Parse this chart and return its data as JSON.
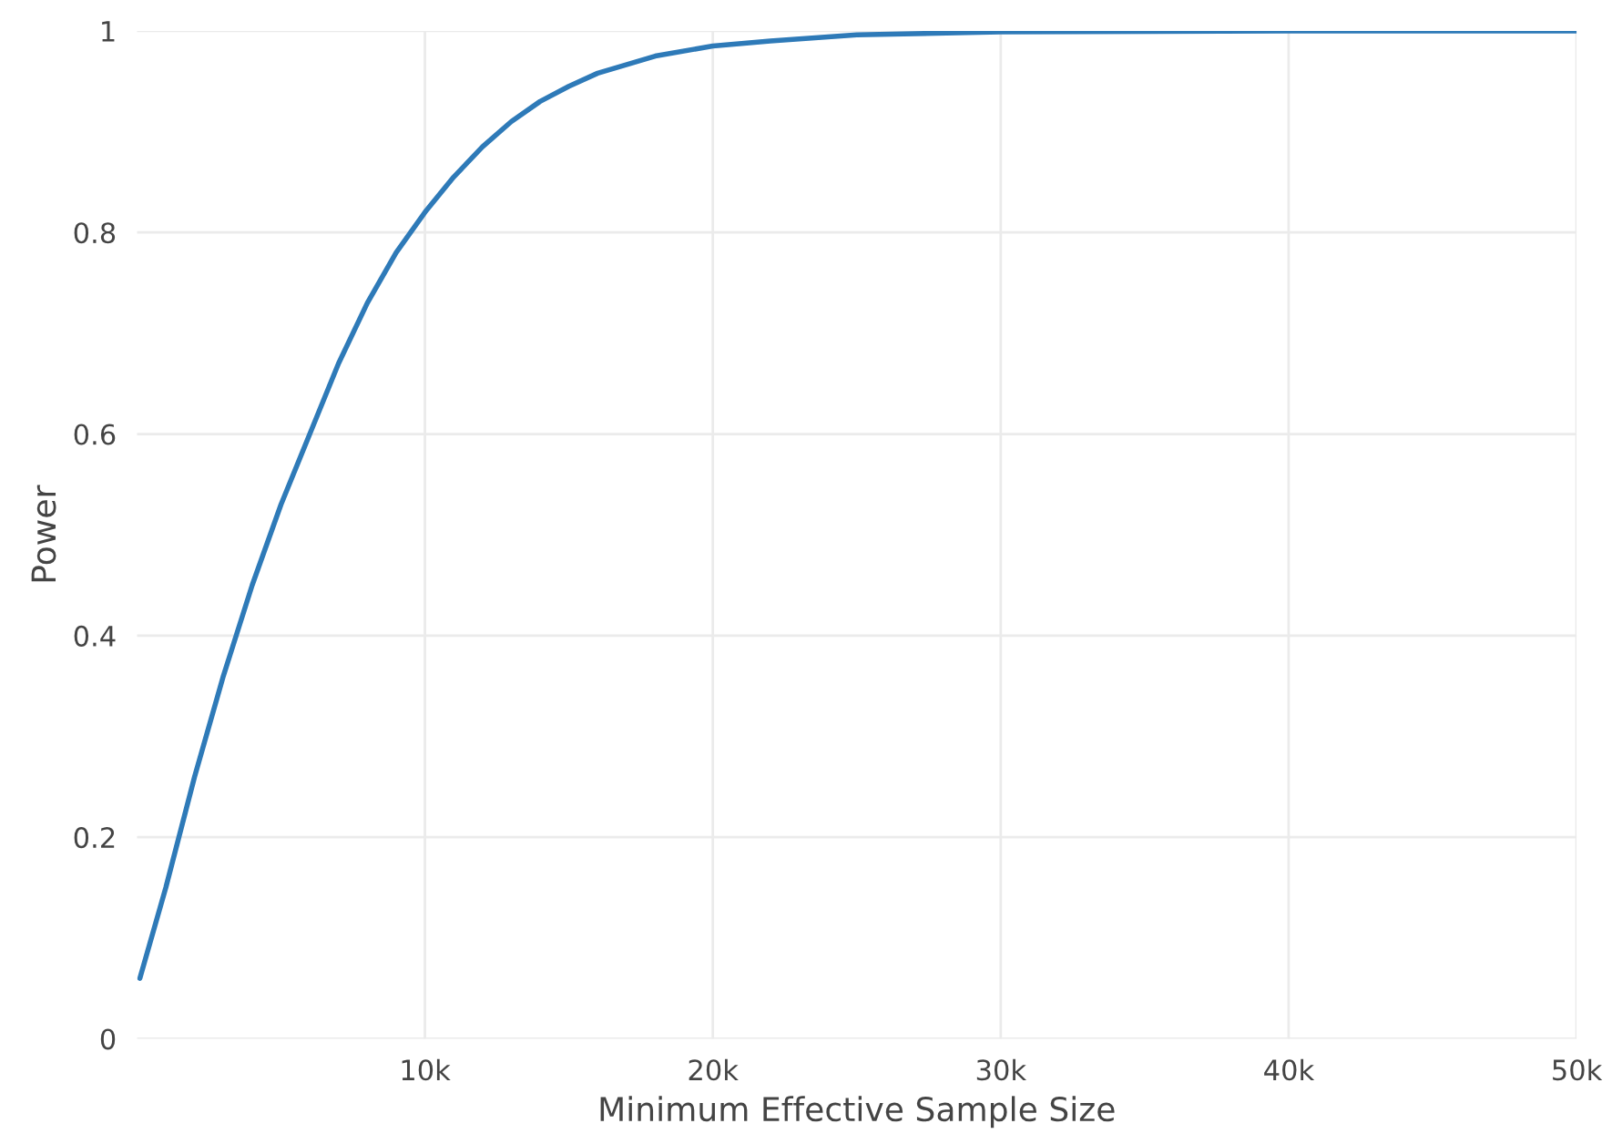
{
  "chart_data": {
    "type": "line",
    "xlabel": "Minimum Effective Sample Size",
    "ylabel": "Power",
    "x": [
      100,
      1000,
      2000,
      3000,
      4000,
      5000,
      6000,
      7000,
      8000,
      9000,
      10000,
      11000,
      12000,
      13000,
      14000,
      15000,
      16000,
      18000,
      20000,
      22000,
      25000,
      30000,
      40000,
      50000
    ],
    "series": [
      {
        "color": "#2e7ab8",
        "values": [
          0.06,
          0.15,
          0.26,
          0.36,
          0.45,
          0.53,
          0.6,
          0.67,
          0.73,
          0.78,
          0.82,
          0.855,
          0.885,
          0.91,
          0.93,
          0.945,
          0.958,
          0.975,
          0.985,
          0.99,
          0.996,
          0.999,
          1,
          1
        ]
      }
    ],
    "xlim": [
      0,
      50000
    ],
    "ylim": [
      0,
      1
    ],
    "xticks": [
      {
        "value": 10000,
        "label": "10k"
      },
      {
        "value": 20000,
        "label": "20k"
      },
      {
        "value": 30000,
        "label": "30k"
      },
      {
        "value": 40000,
        "label": "40k"
      },
      {
        "value": 50000,
        "label": "50k"
      }
    ],
    "yticks": [
      0,
      0.2,
      0.4,
      0.6,
      0.8,
      1
    ],
    "grid": true,
    "line_style": "solid"
  }
}
